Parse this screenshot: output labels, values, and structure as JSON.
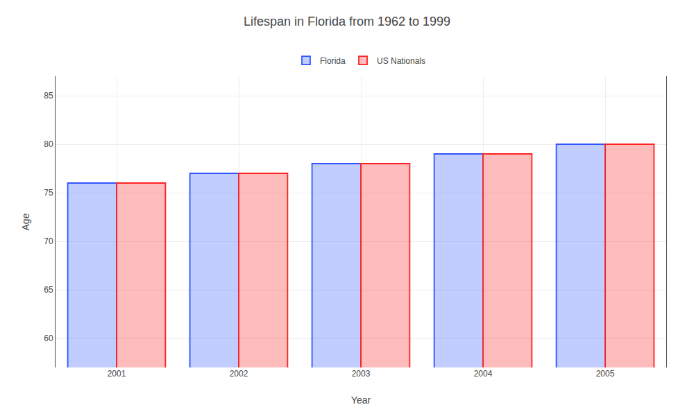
{
  "chart_data": {
    "type": "bar",
    "title": "Lifespan in Florida from 1962 to 1999",
    "xlabel": "Year",
    "ylabel": "Age",
    "categories": [
      "2001",
      "2002",
      "2003",
      "2004",
      "2005"
    ],
    "series": [
      {
        "name": "Florida",
        "color": "#3355ff",
        "values": [
          76,
          77,
          78,
          79,
          80
        ]
      },
      {
        "name": "US Nationals",
        "color": "#ff2222",
        "values": [
          76,
          77,
          78,
          79,
          80
        ]
      }
    ],
    "ylim": [
      57,
      87
    ],
    "yticks": [
      60,
      65,
      70,
      75,
      80,
      85
    ],
    "grid": true,
    "legend": "top"
  }
}
